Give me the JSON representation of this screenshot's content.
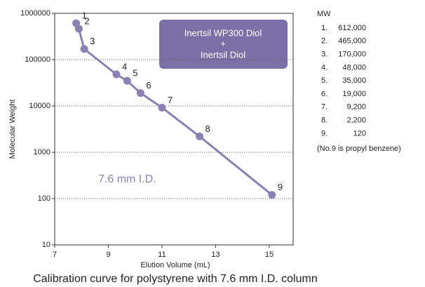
{
  "chart_data": {
    "type": "scatter-line",
    "x_label": "Elution Volume (mL)",
    "y_label": "Molecular Weight",
    "caption": "Calibration curve for polystyrene with 7.6 mm I.D. column",
    "x": [
      7.8,
      7.9,
      8.1,
      9.3,
      9.7,
      10.2,
      11.0,
      12.4,
      15.1
    ],
    "values": [
      612000,
      465000,
      170000,
      48000,
      35000,
      19000,
      9200,
      2200,
      120
    ],
    "point_labels": [
      "1",
      "2",
      "3",
      "4",
      "5",
      "6",
      "7",
      "8",
      "9"
    ],
    "color": "#8a80b4",
    "xlim": [
      7,
      16
    ],
    "xticks": [
      7,
      9,
      11,
      13,
      15
    ],
    "ylim": [
      10,
      1000000
    ],
    "yticks": [
      10,
      100,
      1000,
      10000,
      100000,
      1000000
    ],
    "log_y": true,
    "grid": true,
    "box_lines": [
      "Inertsil WP300 Diol",
      "+",
      "Inertsil Diol"
    ],
    "annotation": "7.6 mm I.D.",
    "mw_table": {
      "title": "MW",
      "rows": [
        {
          "no": "1.",
          "mw": "612,000"
        },
        {
          "no": "2.",
          "mw": "465,000"
        },
        {
          "no": "3.",
          "mw": "170,000"
        },
        {
          "no": "4.",
          "mw": "48,000"
        },
        {
          "no": "5.",
          "mw": "35,000"
        },
        {
          "no": "6.",
          "mw": "19,000"
        },
        {
          "no": "7.",
          "mw": "9,200"
        },
        {
          "no": "8.",
          "mw": "2,200"
        },
        {
          "no": "9.",
          "mw": "120"
        }
      ],
      "note": "(No.9 is propyl benzene)"
    }
  }
}
